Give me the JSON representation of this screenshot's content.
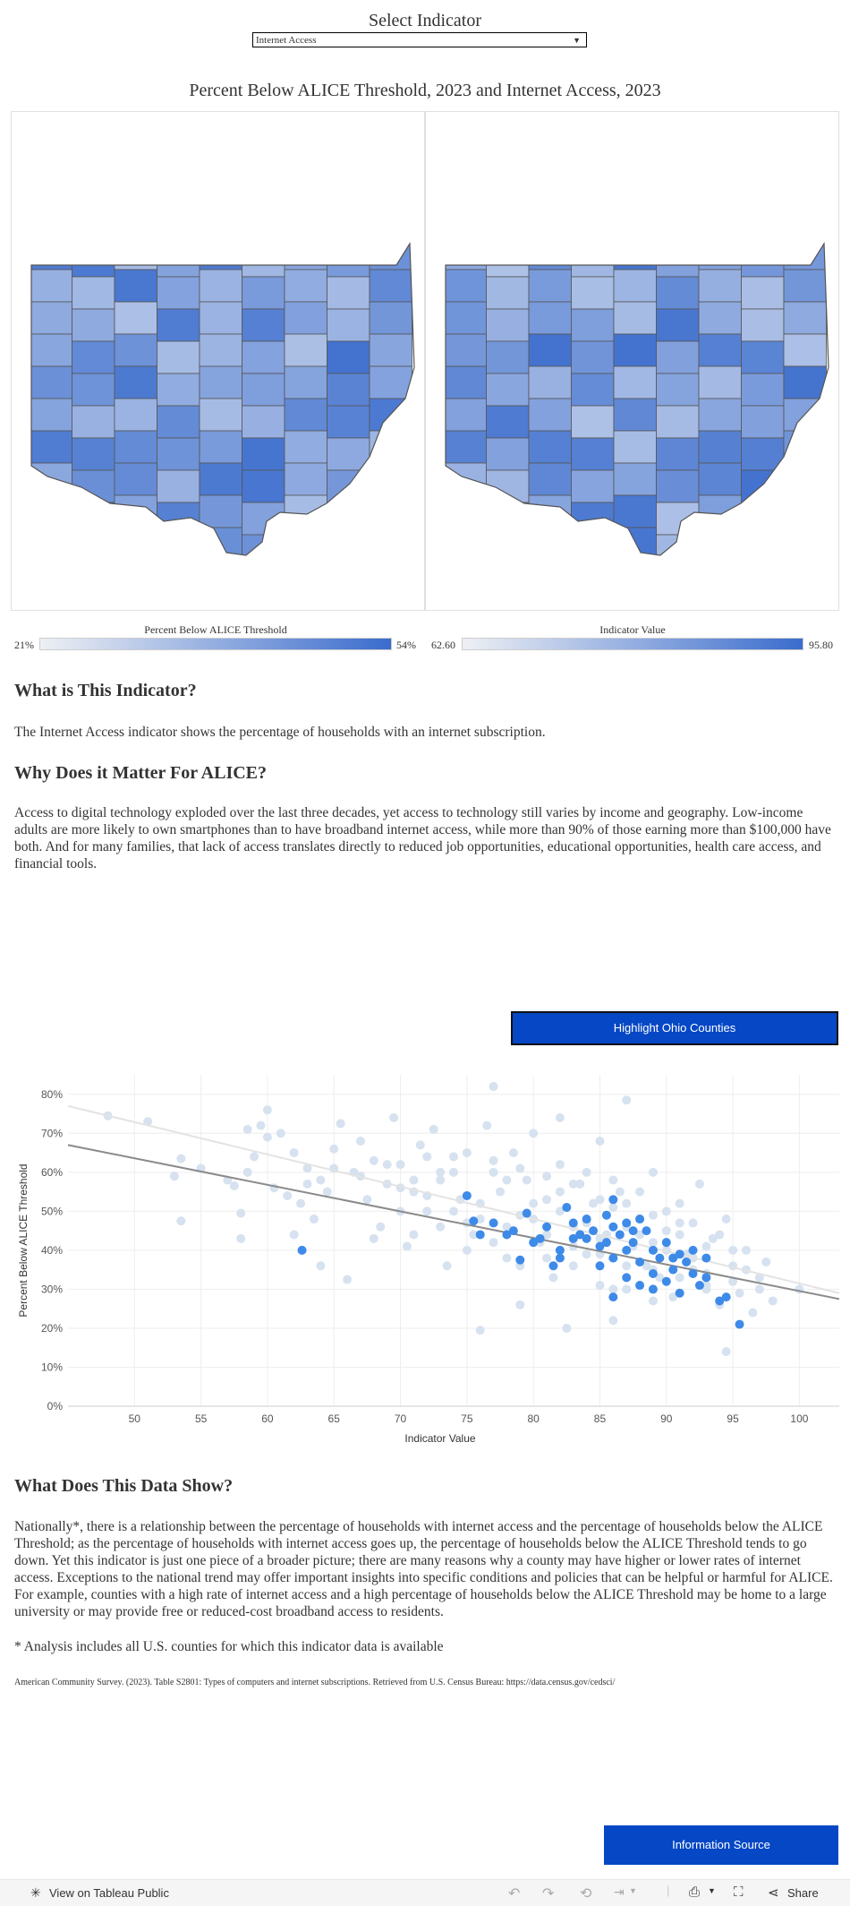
{
  "selector": {
    "title": "Select Indicator",
    "value": "Internet Access"
  },
  "maps": {
    "title": "Percent Below ALICE Threshold, 2023 and Internet Access, 2023",
    "left_legend": {
      "title": "Percent Below ALICE Threshold",
      "min": "21%",
      "max": "54%"
    },
    "right_legend": {
      "title": "Indicator Value",
      "min": "62.60",
      "max": "95.80"
    },
    "colors": {
      "low": "#eef0f4",
      "high": "#3a6ccd",
      "border": "#555555"
    }
  },
  "sections": {
    "what_title": "What is This Indicator?",
    "what_text": "The Internet Access indicator shows the percentage of households with an internet subscription.",
    "why_title": "Why Does it Matter For ALICE?",
    "why_text": "Access to digital technology exploded over the last three decades, yet access to technology still varies by income and geography. Low-income adults are more likely to own smartphones than to have broadband internet access, while more than 90% of those earning more than $100,000 have both. And for many families, that lack of access translates directly to reduced job opportunities, educational opportunities, health care access, and financial tools.",
    "show_title": "What Does This Data Show?",
    "show_text": "Nationally*, there is a relationship between the percentage of households with internet access and the percentage of households below the ALICE Threshold; as the percentage of households with internet access goes up, the percentage of households below the ALICE Threshold tends to go down. Yet this indicator is just one piece of a broader picture; there are many reasons why a county may have higher or lower rates of internet access. Exceptions to the national trend may offer important insights into specific conditions and policies that can be helpful or harmful for ALICE. For example, counties with a high rate of internet access and a high percentage of households below the ALICE Threshold may be home to a large university or may provide free or reduced-cost broadband access to residents.",
    "note": "* Analysis includes all U.S. counties for which this indicator data is available",
    "source": "American Community Survey. (2023). Table S2801: Types of computers and internet subscriptions. Retrieved from U.S. Census Bureau: https://data.census.gov/cedsci/"
  },
  "buttons": {
    "highlight": "Highlight Ohio Counties",
    "info": "Information Source"
  },
  "footer": {
    "view_label": "View on Tableau Public",
    "share_label": "Share"
  },
  "chart_data": {
    "type": "scatter",
    "xlabel": "Indicator Value",
    "ylabel": "Percent Below ALICE Threshold",
    "xlim": [
      45,
      103
    ],
    "ylim": [
      0,
      85
    ],
    "x_ticks": [
      "50",
      "55",
      "60",
      "65",
      "70",
      "75",
      "80",
      "85",
      "90",
      "95",
      "100"
    ],
    "y_ticks": [
      "0%",
      "10%",
      "20%",
      "30%",
      "40%",
      "50%",
      "60%",
      "70%",
      "80%"
    ],
    "grid": true,
    "colors": {
      "national": "#d6e2ef",
      "ohio": "#3e8ae8",
      "trend_national": "#e3e3e3",
      "trend_ohio": "#8a8a8a"
    },
    "trend_lines": [
      {
        "x": [
          45,
          103
        ],
        "y": [
          77,
          29
        ]
      },
      {
        "x": [
          45,
          103
        ],
        "y": [
          67,
          27.5
        ]
      }
    ],
    "series": [
      {
        "values": [
          [
            48,
            74.5
          ],
          [
            51,
            73
          ],
          [
            53,
            59
          ],
          [
            53.5,
            63.5
          ],
          [
            53.5,
            47.5
          ],
          [
            55,
            61
          ],
          [
            57,
            58
          ],
          [
            57.5,
            56.5
          ],
          [
            58,
            43
          ],
          [
            58,
            49.5
          ],
          [
            58.5,
            71
          ],
          [
            58.5,
            60
          ],
          [
            59,
            64
          ],
          [
            59.5,
            72
          ],
          [
            60,
            76
          ],
          [
            60,
            69
          ],
          [
            60.5,
            56
          ],
          [
            61,
            70
          ],
          [
            61.5,
            54
          ],
          [
            62,
            65
          ],
          [
            62.5,
            52
          ],
          [
            63,
            61
          ],
          [
            63.5,
            48
          ],
          [
            64,
            58
          ],
          [
            64.5,
            55
          ],
          [
            65,
            66
          ],
          [
            65.5,
            72.5
          ],
          [
            66,
            32.5
          ],
          [
            66.5,
            60
          ],
          [
            67,
            68
          ],
          [
            67.5,
            53
          ],
          [
            68,
            63
          ],
          [
            68.5,
            46
          ],
          [
            69,
            57
          ],
          [
            69.5,
            74
          ],
          [
            70,
            62
          ],
          [
            70.5,
            41
          ],
          [
            71,
            55
          ],
          [
            71.5,
            67
          ],
          [
            72,
            50
          ],
          [
            72.5,
            71
          ],
          [
            73,
            58
          ],
          [
            73.5,
            36
          ],
          [
            74,
            64
          ],
          [
            74.5,
            53
          ],
          [
            75,
            47
          ],
          [
            75.5,
            44
          ],
          [
            76,
            19.5
          ],
          [
            76.5,
            72
          ],
          [
            77,
            82
          ],
          [
            77,
            60
          ],
          [
            77.5,
            55
          ],
          [
            78,
            38
          ],
          [
            78.5,
            65
          ],
          [
            79,
            49
          ],
          [
            79.5,
            58
          ],
          [
            80,
            70
          ],
          [
            80.5,
            42
          ],
          [
            81,
            53
          ],
          [
            81.5,
            33
          ],
          [
            82,
            62
          ],
          [
            82,
            74
          ],
          [
            82.5,
            20
          ],
          [
            83,
            46
          ],
          [
            83.5,
            57
          ],
          [
            84,
            39
          ],
          [
            84.5,
            52
          ],
          [
            85,
            68
          ],
          [
            85.5,
            44
          ],
          [
            86,
            30
          ],
          [
            86.5,
            55
          ],
          [
            87,
            78.5
          ],
          [
            87.5,
            41
          ],
          [
            88,
            48
          ],
          [
            88.5,
            36
          ],
          [
            89,
            60
          ],
          [
            89.5,
            33
          ],
          [
            90,
            45
          ],
          [
            90.5,
            28
          ],
          [
            91,
            52
          ],
          [
            91.5,
            39
          ],
          [
            92,
            35
          ],
          [
            92.5,
            57
          ],
          [
            93,
            31
          ],
          [
            93.5,
            43
          ],
          [
            94,
            26
          ],
          [
            94.5,
            48
          ],
          [
            95,
            36
          ],
          [
            95.5,
            29
          ],
          [
            96,
            40
          ],
          [
            96.5,
            24
          ],
          [
            97,
            33
          ],
          [
            97.5,
            37
          ],
          [
            98,
            27
          ],
          [
            100,
            30
          ],
          [
            94.5,
            14
          ],
          [
            86,
            22
          ],
          [
            79,
            26
          ],
          [
            72,
            64
          ],
          [
            68,
            43
          ],
          [
            64,
            36
          ],
          [
            62,
            44
          ],
          [
            70,
            50
          ],
          [
            74,
            60
          ],
          [
            76,
            52
          ],
          [
            80,
            48
          ],
          [
            84,
            47
          ],
          [
            86,
            51
          ],
          [
            88,
            44
          ],
          [
            90,
            40
          ],
          [
            92,
            38
          ],
          [
            82,
            55
          ],
          [
            78,
            58
          ],
          [
            75,
            65
          ],
          [
            73,
            60
          ],
          [
            71,
            58
          ],
          [
            69,
            62
          ],
          [
            67,
            59
          ],
          [
            65,
            61
          ],
          [
            63,
            57
          ],
          [
            81,
            44
          ],
          [
            83,
            41
          ],
          [
            85,
            39
          ],
          [
            87,
            36
          ],
          [
            89,
            35
          ],
          [
            91,
            33
          ],
          [
            93,
            34
          ],
          [
            95,
            32
          ],
          [
            79,
            36
          ],
          [
            77,
            42
          ],
          [
            75,
            40
          ],
          [
            73,
            46
          ],
          [
            71,
            44
          ],
          [
            84,
            60
          ],
          [
            86,
            58
          ],
          [
            88,
            55
          ],
          [
            90,
            50
          ],
          [
            92,
            47
          ],
          [
            94,
            44
          ],
          [
            96,
            35
          ],
          [
            80,
            52
          ],
          [
            82,
            50
          ],
          [
            76,
            48
          ],
          [
            78,
            46
          ],
          [
            74,
            50
          ],
          [
            72,
            54
          ],
          [
            70,
            56
          ],
          [
            85,
            31
          ],
          [
            87,
            30
          ],
          [
            89,
            27
          ],
          [
            91,
            29
          ],
          [
            93,
            30
          ],
          [
            81,
            38
          ],
          [
            83,
            36
          ],
          [
            85,
            43
          ],
          [
            87,
            46
          ],
          [
            89,
            42
          ],
          [
            91,
            44
          ],
          [
            93,
            41
          ],
          [
            77,
            63
          ],
          [
            79,
            61
          ],
          [
            81,
            59
          ],
          [
            83,
            57
          ],
          [
            85,
            53
          ],
          [
            87,
            52
          ],
          [
            89,
            49
          ],
          [
            91,
            47
          ],
          [
            95,
            40
          ],
          [
            97,
            30
          ]
        ]
      },
      {
        "values": [
          [
            62.6,
            40
          ],
          [
            75,
            54
          ],
          [
            75.5,
            47.5
          ],
          [
            76,
            44
          ],
          [
            77,
            47
          ],
          [
            78,
            44
          ],
          [
            78.5,
            45
          ],
          [
            79,
            37.5
          ],
          [
            79.5,
            49.5
          ],
          [
            80,
            42
          ],
          [
            80.5,
            43
          ],
          [
            81,
            46
          ],
          [
            81.5,
            36
          ],
          [
            82,
            40
          ],
          [
            82.5,
            51
          ],
          [
            83,
            47
          ],
          [
            83,
            43
          ],
          [
            83.5,
            44
          ],
          [
            84,
            48
          ],
          [
            84.5,
            45
          ],
          [
            85,
            41
          ],
          [
            85.5,
            49
          ],
          [
            85.5,
            42
          ],
          [
            86,
            53
          ],
          [
            86,
            46
          ],
          [
            86,
            38
          ],
          [
            86.5,
            44
          ],
          [
            87,
            47
          ],
          [
            87,
            40
          ],
          [
            87,
            33
          ],
          [
            87.5,
            42
          ],
          [
            88,
            48
          ],
          [
            88,
            37
          ],
          [
            88,
            31
          ],
          [
            88.5,
            45
          ],
          [
            89,
            40
          ],
          [
            89,
            34
          ],
          [
            89.5,
            38
          ],
          [
            90,
            42
          ],
          [
            90,
            32
          ],
          [
            90.5,
            35
          ],
          [
            91,
            39
          ],
          [
            91,
            29
          ],
          [
            91.5,
            37
          ],
          [
            92,
            34
          ],
          [
            92,
            40
          ],
          [
            92.5,
            31
          ],
          [
            93,
            38
          ],
          [
            94,
            27
          ],
          [
            94.5,
            28
          ],
          [
            95.5,
            21
          ],
          [
            84,
            43
          ],
          [
            82,
            38
          ],
          [
            86,
            28
          ],
          [
            87.5,
            45
          ],
          [
            89,
            30
          ],
          [
            90.5,
            38
          ],
          [
            93,
            33
          ],
          [
            85,
            36
          ]
        ]
      }
    ]
  }
}
